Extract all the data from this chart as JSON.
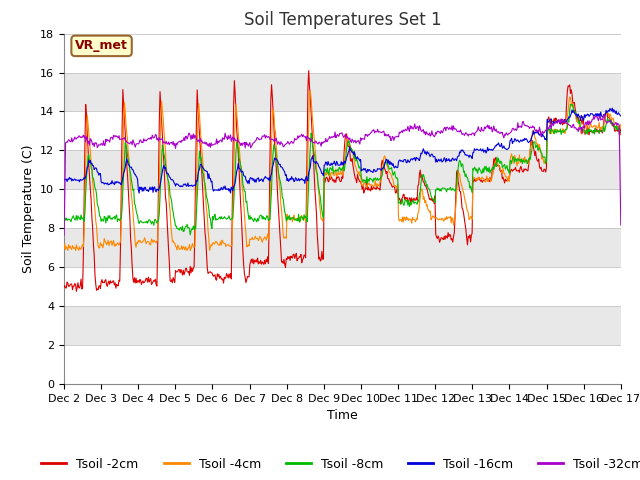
{
  "title": "Soil Temperatures Set 1",
  "xlabel": "Time",
  "ylabel": "Soil Temperature (C)",
  "ylim": [
    0,
    18
  ],
  "yticks": [
    0,
    2,
    4,
    6,
    8,
    10,
    12,
    14,
    16,
    18
  ],
  "days": [
    "Dec 2",
    "Dec 3",
    "Dec 4",
    "Dec 5",
    "Dec 6",
    "Dec 7",
    "Dec 8",
    "Dec 9",
    "Dec 10",
    "Dec 11",
    "Dec 12",
    "Dec 13",
    "Dec 14",
    "Dec 15",
    "Dec 16",
    "Dec 17"
  ],
  "annotation": "VR_met",
  "colors": {
    "Tsoil -2cm": "#dd0000",
    "Tsoil -4cm": "#ff8800",
    "Tsoil -8cm": "#00bb00",
    "Tsoil -16cm": "#0000dd",
    "Tsoil -32cm": "#aa00cc"
  },
  "bg_color": "#ffffff",
  "band_colors": [
    "#ffffff",
    "#e8e8e8"
  ],
  "title_fontsize": 12,
  "axis_fontsize": 9,
  "tick_fontsize": 8,
  "legend_fontsize": 9
}
